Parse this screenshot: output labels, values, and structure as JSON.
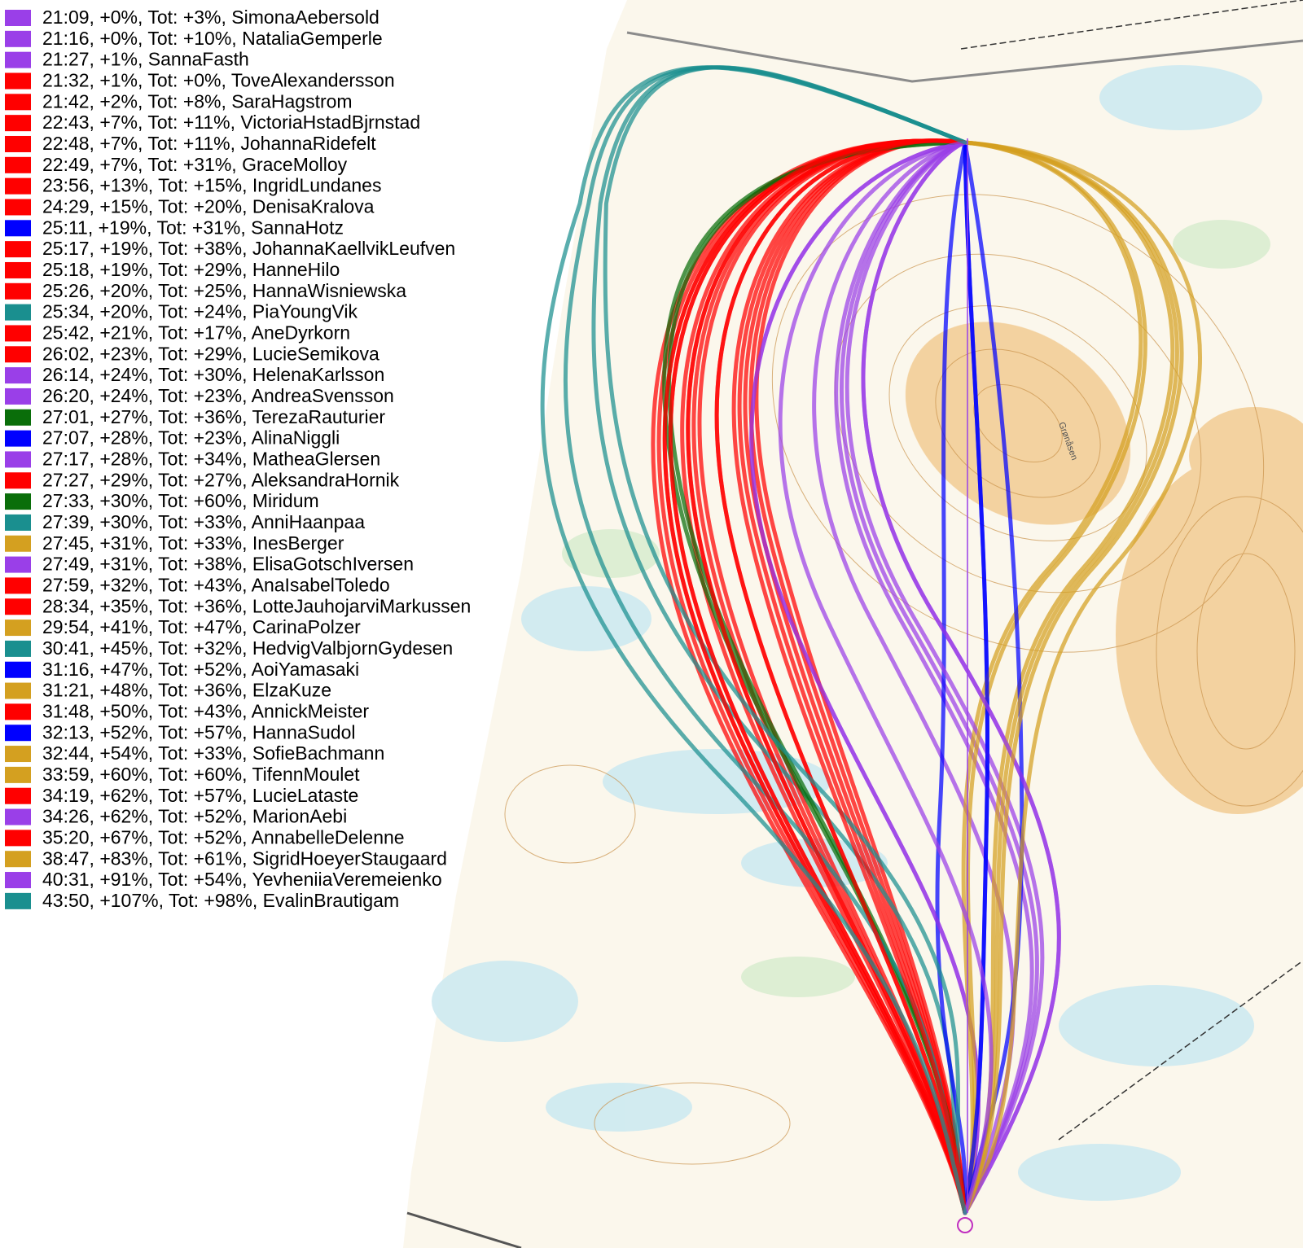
{
  "map_label": "Grønåsen",
  "legend": [
    {
      "color": "#9a3fe8",
      "text": "21:09, +0%, Tot: +3%, SimonaAebersold"
    },
    {
      "color": "#9a3fe8",
      "text": "21:16, +0%, Tot: +10%, NataliaGemperle"
    },
    {
      "color": "#9a3fe8",
      "text": "21:27, +1%, SannaFasth"
    },
    {
      "color": "#ff0000",
      "text": "21:32, +1%, Tot: +0%, ToveAlexandersson"
    },
    {
      "color": "#ff0000",
      "text": "21:42, +2%, Tot: +8%, SaraHagstrom"
    },
    {
      "color": "#ff0000",
      "text": "22:43, +7%, Tot: +11%, VictoriaHstadBjrnstad"
    },
    {
      "color": "#ff0000",
      "text": "22:48, +7%, Tot: +11%, JohannaRidefelt"
    },
    {
      "color": "#ff0000",
      "text": "22:49, +7%, Tot: +31%, GraceMolloy"
    },
    {
      "color": "#ff0000",
      "text": "23:56, +13%, Tot: +15%, IngridLundanes"
    },
    {
      "color": "#ff0000",
      "text": "24:29, +15%, Tot: +20%, DenisaKralova"
    },
    {
      "color": "#0000ff",
      "text": "25:11, +19%, Tot: +31%, SannaHotz"
    },
    {
      "color": "#ff0000",
      "text": "25:17, +19%, Tot: +38%, JohannaKaellvikLeufven"
    },
    {
      "color": "#ff0000",
      "text": "25:18, +19%, Tot: +29%, HanneHilo"
    },
    {
      "color": "#ff0000",
      "text": "25:26, +20%, Tot: +25%, HannaWisniewska"
    },
    {
      "color": "#1a8f8f",
      "text": "25:34, +20%, Tot: +24%, PiaYoungVik"
    },
    {
      "color": "#ff0000",
      "text": "25:42, +21%, Tot: +17%, AneDyrkorn"
    },
    {
      "color": "#ff0000",
      "text": "26:02, +23%, Tot: +29%, LucieSemikova"
    },
    {
      "color": "#9a3fe8",
      "text": "26:14, +24%, Tot: +30%, HelenaKarlsson"
    },
    {
      "color": "#9a3fe8",
      "text": "26:20, +24%, Tot: +23%, AndreaSvensson"
    },
    {
      "color": "#0a6e0a",
      "text": "27:01, +27%, Tot: +36%, TerezaRauturier"
    },
    {
      "color": "#0000ff",
      "text": "27:07, +28%, Tot: +23%, AlinaNiggli"
    },
    {
      "color": "#9a3fe8",
      "text": "27:17, +28%, Tot: +34%, MatheaGlersen"
    },
    {
      "color": "#ff0000",
      "text": "27:27, +29%, Tot: +27%, AleksandraHornik"
    },
    {
      "color": "#0a6e0a",
      "text": "27:33, +30%, Tot: +60%, Miridum"
    },
    {
      "color": "#1a8f8f",
      "text": "27:39, +30%, Tot: +33%, AnniHaanpaa"
    },
    {
      "color": "#d4a020",
      "text": "27:45, +31%, Tot: +33%, InesBerger"
    },
    {
      "color": "#9a3fe8",
      "text": "27:49, +31%, Tot: +38%, ElisaGotschIversen"
    },
    {
      "color": "#ff0000",
      "text": "27:59, +32%, Tot: +43%, AnaIsabelToledo"
    },
    {
      "color": "#ff0000",
      "text": "28:34, +35%, Tot: +36%, LotteJauhojarviMarkussen"
    },
    {
      "color": "#d4a020",
      "text": "29:54, +41%, Tot: +47%, CarinaPolzer"
    },
    {
      "color": "#1a8f8f",
      "text": "30:41, +45%, Tot: +32%, HedvigValbjornGydesen"
    },
    {
      "color": "#0000ff",
      "text": "31:16, +47%, Tot: +52%, AoiYamasaki"
    },
    {
      "color": "#d4a020",
      "text": "31:21, +48%, Tot: +36%, ElzaKuze"
    },
    {
      "color": "#ff0000",
      "text": "31:48, +50%, Tot: +43%, AnnickMeister"
    },
    {
      "color": "#0000ff",
      "text": "32:13, +52%, Tot: +57%, HannaSudol"
    },
    {
      "color": "#d4a020",
      "text": "32:44, +54%, Tot: +33%, SofieBachmann"
    },
    {
      "color": "#d4a020",
      "text": "33:59, +60%, Tot: +60%, TifennMoulet"
    },
    {
      "color": "#ff0000",
      "text": "34:19, +62%, Tot: +57%, LucieLataste"
    },
    {
      "color": "#9a3fe8",
      "text": "34:26, +62%, Tot: +52%, MarionAebi"
    },
    {
      "color": "#ff0000",
      "text": "35:20, +67%, Tot: +52%, AnnabelleDelenne"
    },
    {
      "color": "#d4a020",
      "text": "38:47, +83%, Tot: +61%, SigridHoeyerStaugaard"
    },
    {
      "color": "#9a3fe8",
      "text": "40:31, +91%, Tot: +54%, YevheniiaVeremeienko"
    },
    {
      "color": "#1a8f8f",
      "text": "43:50, +107%, Tot: +98%, EvalinBrautigam"
    }
  ]
}
